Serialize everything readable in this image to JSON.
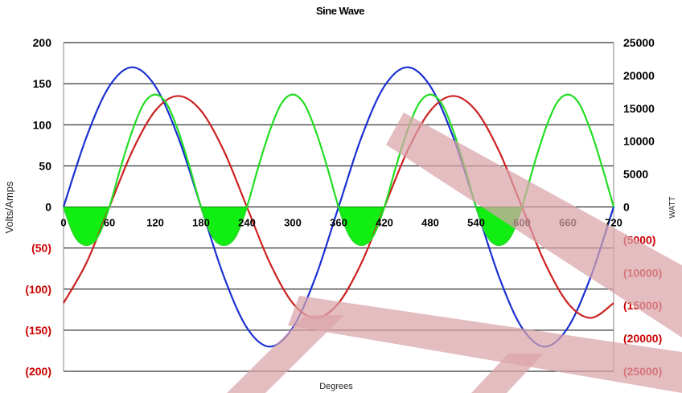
{
  "chart_data": {
    "type": "line",
    "title": "Sine Wave",
    "xlabel": "Degrees",
    "ylabel_left": "Volts/Amps",
    "ylabel_right": "WATT",
    "xlim": [
      0,
      720
    ],
    "ylim_left": [
      -200,
      200
    ],
    "ylim_right": [
      -25000,
      25000
    ],
    "x_ticks": [
      "0",
      "60",
      "120",
      "180",
      "240",
      "300",
      "360",
      "420",
      "480",
      "540",
      "600",
      "660",
      "720"
    ],
    "y_left_ticks": [
      {
        "value": 200,
        "label": "200"
      },
      {
        "value": 150,
        "label": "150"
      },
      {
        "value": 100,
        "label": "100"
      },
      {
        "value": 50,
        "label": "50"
      },
      {
        "value": 0,
        "label": "0"
      },
      {
        "value": -50,
        "label": "(50)"
      },
      {
        "value": -100,
        "label": "(100)"
      },
      {
        "value": -150,
        "label": "(150)"
      },
      {
        "value": -200,
        "label": "(200)"
      }
    ],
    "y_right_ticks": [
      {
        "value": 25000,
        "label": "25000"
      },
      {
        "value": 20000,
        "label": "20000"
      },
      {
        "value": 15000,
        "label": "15000"
      },
      {
        "value": 10000,
        "label": "10000"
      },
      {
        "value": 5000,
        "label": "5000"
      },
      {
        "value": 0,
        "label": "0"
      },
      {
        "value": -5000,
        "label": "(5000)"
      },
      {
        "value": -10000,
        "label": "(10000)"
      },
      {
        "value": -15000,
        "label": "(15000)"
      },
      {
        "value": -20000,
        "label": "(20000)"
      },
      {
        "value": -25000,
        "label": "(25000)"
      }
    ],
    "grid": "horizontal",
    "series": [
      {
        "axis": "left",
        "color": "#1a2fd0",
        "x": [
          0,
          30,
          60,
          90,
          120,
          150,
          180,
          210,
          240,
          270,
          300,
          330,
          360,
          390,
          420,
          450,
          480,
          510,
          540,
          570,
          600,
          630,
          660,
          690,
          720
        ],
        "values": [
          0,
          85,
          147,
          170,
          147,
          85,
          0,
          -85,
          -147,
          -170,
          -147,
          -85,
          0,
          85,
          147,
          170,
          147,
          85,
          0,
          -85,
          -147,
          -170,
          -147,
          -85,
          0
        ]
      },
      {
        "axis": "left",
        "color": "#cc2222",
        "x": [
          0,
          30,
          60,
          90,
          120,
          150,
          180,
          210,
          240,
          270,
          300,
          330,
          360,
          390,
          420,
          450,
          480,
          510,
          540,
          570,
          600,
          630,
          660,
          690,
          720
        ],
        "values": [
          -117,
          -68,
          0,
          68,
          117,
          135,
          117,
          68,
          0,
          -68,
          -117,
          -135,
          -117,
          -68,
          0,
          68,
          117,
          135,
          117,
          68,
          0,
          -68,
          -117,
          -135,
          -117
        ]
      },
      {
        "axis": "right",
        "color": "#22dd22",
        "fill_negative": "#11ee11",
        "x": [
          0,
          15,
          30,
          45,
          60,
          75,
          90,
          105,
          120,
          135,
          150,
          165,
          180,
          195,
          210,
          225,
          240,
          255,
          270,
          285,
          300,
          315,
          330,
          345,
          360,
          375,
          390,
          405,
          420,
          435,
          450,
          465,
          480,
          495,
          510,
          525,
          540,
          555,
          570,
          585,
          600,
          615,
          630,
          645,
          660,
          675,
          690,
          705,
          720
        ],
        "values": [
          0,
          -4500,
          -5800,
          -4500,
          0,
          6100,
          11600,
          15700,
          17100,
          15700,
          11600,
          6100,
          0,
          -4500,
          -5800,
          -4500,
          0,
          6100,
          11600,
          15700,
          17100,
          15700,
          11600,
          6100,
          0,
          -4500,
          -5800,
          -4500,
          0,
          6100,
          11600,
          15700,
          17100,
          15700,
          11600,
          6100,
          0,
          -4500,
          -5800,
          -4500,
          0,
          6100,
          11600,
          15700,
          17100,
          15700,
          11600,
          6100,
          0
        ]
      }
    ]
  }
}
